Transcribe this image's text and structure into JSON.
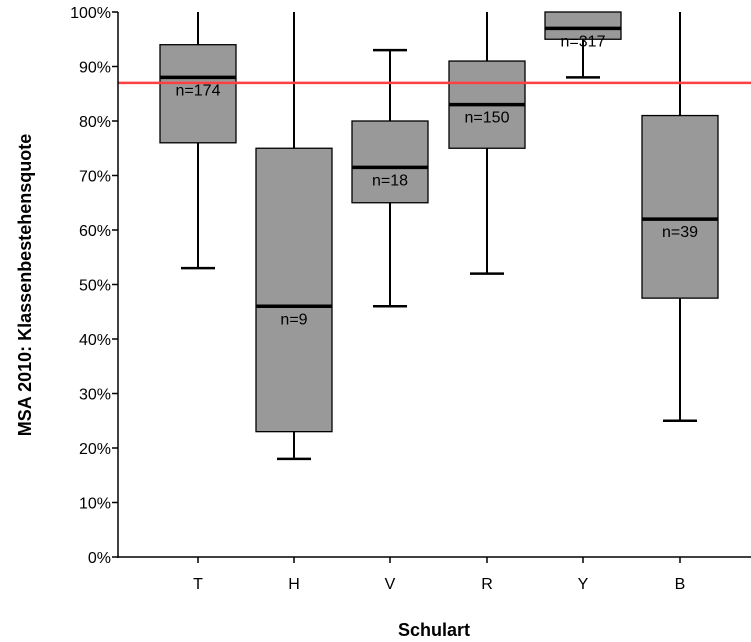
{
  "chart_data": {
    "type": "boxplot",
    "xlabel": "Schulart",
    "ylabel": "MSA 2010: Klassenbestehensquote",
    "ylim": [
      0,
      100
    ],
    "yticks": [
      "0%",
      "10%",
      "20%",
      "30%",
      "40%",
      "50%",
      "60%",
      "70%",
      "80%",
      "90%",
      "100%"
    ],
    "grid": false,
    "box_color": "#999999",
    "reference_line": {
      "value": 87,
      "color": "#ff4040"
    },
    "categories": [
      "T",
      "H",
      "V",
      "R",
      "Y",
      "B"
    ],
    "boxes": [
      {
        "category": "T",
        "whisker_low": 53,
        "q1": 76,
        "median": 88,
        "q3": 94,
        "whisker_high": 100,
        "n_label": "n=174"
      },
      {
        "category": "H",
        "whisker_low": 18,
        "q1": 23,
        "median": 46,
        "q3": 75,
        "whisker_high": 100,
        "n_label": "n=9"
      },
      {
        "category": "V",
        "whisker_low": 46,
        "q1": 65,
        "median": 71.5,
        "q3": 80,
        "whisker_high": 93,
        "n_label": "n=18"
      },
      {
        "category": "R",
        "whisker_low": 52,
        "q1": 75,
        "median": 83,
        "q3": 91,
        "whisker_high": 100,
        "n_label": "n=150"
      },
      {
        "category": "Y",
        "whisker_low": 88,
        "q1": 95,
        "median": 97,
        "q3": 100,
        "whisker_high": 100,
        "n_label": "n=317"
      },
      {
        "category": "B",
        "whisker_low": 25,
        "q1": 47.5,
        "median": 62,
        "q3": 81,
        "whisker_high": 100,
        "n_label": "n=39"
      }
    ]
  }
}
